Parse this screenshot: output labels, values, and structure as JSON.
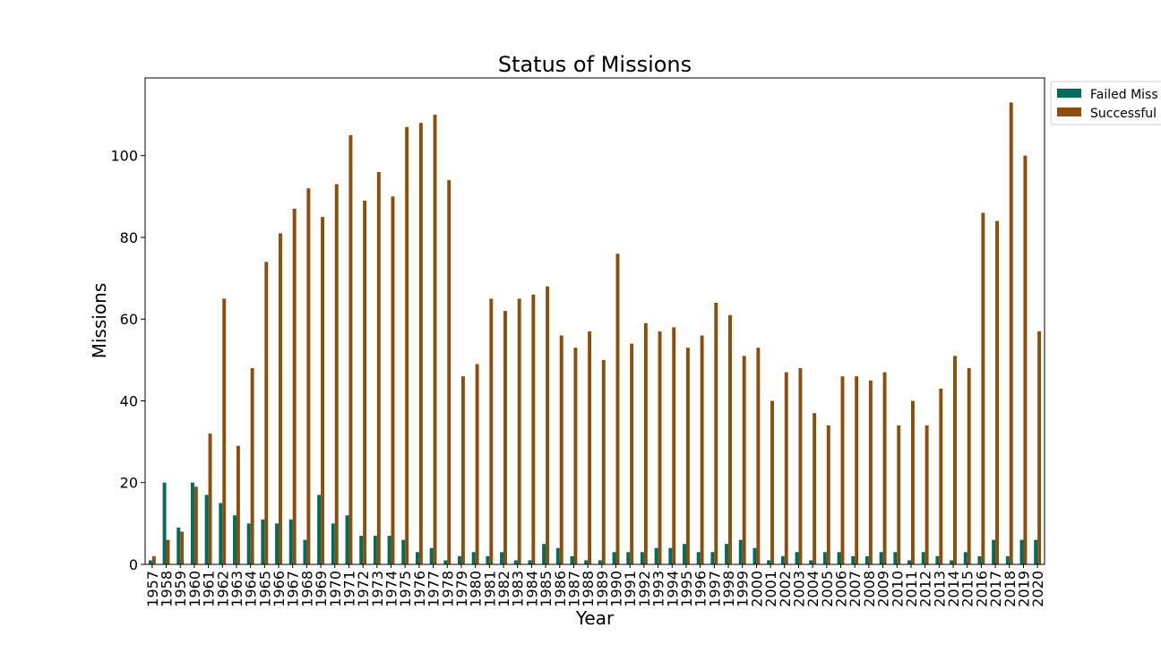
{
  "chart_data": {
    "type": "bar",
    "title": "Status of Missions",
    "xlabel": "Year",
    "ylabel": "Missions",
    "ylim": [
      0,
      119
    ],
    "yticks": [
      0,
      20,
      40,
      60,
      80,
      100
    ],
    "grid": false,
    "legend_position": "upper-right-outside",
    "categories": [
      "1957",
      "1958",
      "1959",
      "1960",
      "1961",
      "1962",
      "1963",
      "1964",
      "1965",
      "1966",
      "1967",
      "1968",
      "1969",
      "1970",
      "1971",
      "1972",
      "1973",
      "1974",
      "1975",
      "1976",
      "1977",
      "1978",
      "1979",
      "1980",
      "1981",
      "1982",
      "1983",
      "1984",
      "1985",
      "1986",
      "1987",
      "1988",
      "1989",
      "1990",
      "1991",
      "1992",
      "1993",
      "1994",
      "1995",
      "1996",
      "1997",
      "1998",
      "1999",
      "2000",
      "2001",
      "2002",
      "2003",
      "2004",
      "2005",
      "2006",
      "2007",
      "2008",
      "2009",
      "2010",
      "2011",
      "2012",
      "2013",
      "2014",
      "2015",
      "2016",
      "2017",
      "2018",
      "2019",
      "2020"
    ],
    "series": [
      {
        "name": "Failed Missions",
        "legend_label": "Failed Miss",
        "color": "#006b5e",
        "values": [
          1,
          20,
          9,
          20,
          17,
          15,
          12,
          10,
          11,
          10,
          11,
          6,
          17,
          10,
          12,
          7,
          7,
          7,
          6,
          3,
          4,
          1,
          2,
          3,
          2,
          3,
          1,
          1,
          5,
          4,
          2,
          1,
          1,
          3,
          3,
          3,
          4,
          4,
          5,
          3,
          3,
          5,
          6,
          4,
          1,
          2,
          3,
          1,
          3,
          3,
          2,
          2,
          3,
          3,
          1,
          3,
          2,
          1,
          3,
          2,
          6,
          2,
          6,
          6
        ]
      },
      {
        "name": "Successful Missions",
        "legend_label": "Successful",
        "color": "#8b4e0b",
        "values": [
          2,
          6,
          8,
          19,
          32,
          65,
          29,
          48,
          74,
          81,
          87,
          92,
          85,
          93,
          105,
          89,
          96,
          90,
          107,
          108,
          110,
          94,
          46,
          49,
          65,
          62,
          65,
          66,
          68,
          56,
          53,
          57,
          50,
          76,
          54,
          59,
          57,
          58,
          53,
          56,
          64,
          61,
          51,
          53,
          40,
          47,
          48,
          37,
          34,
          46,
          46,
          45,
          47,
          34,
          40,
          34,
          43,
          51,
          48,
          86,
          84,
          113,
          100,
          57
        ]
      }
    ]
  }
}
